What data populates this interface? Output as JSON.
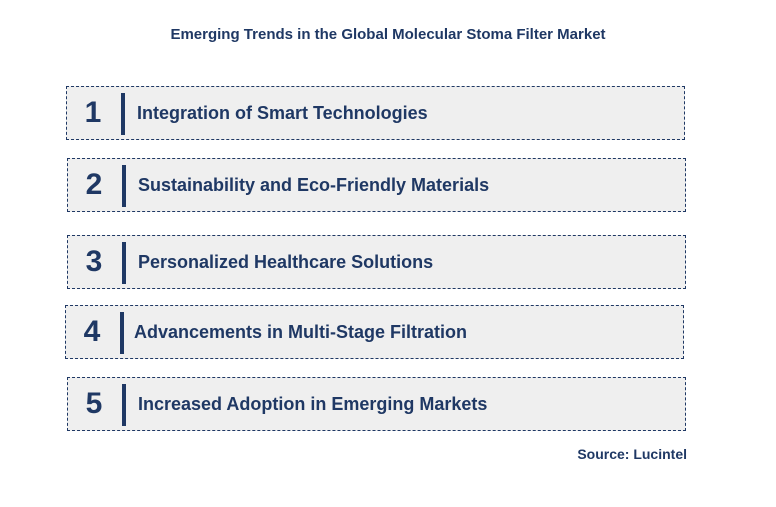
{
  "title": "Emerging Trends in the Global Molecular Stoma Filter Market",
  "items": [
    {
      "number": "1",
      "label": "Integration of Smart Technologies"
    },
    {
      "number": "2",
      "label": "Sustainability and Eco-Friendly Materials"
    },
    {
      "number": "3",
      "label": "Personalized Healthcare Solutions"
    },
    {
      "number": "4",
      "label": "Advancements in Multi-Stage Filtration"
    },
    {
      "number": "5",
      "label": "Increased Adoption in Emerging Markets"
    }
  ],
  "source": "Source: Lucintel",
  "colors": {
    "text": "#1f3864",
    "box_fill": "#efefef",
    "box_border": "#1f3864"
  }
}
